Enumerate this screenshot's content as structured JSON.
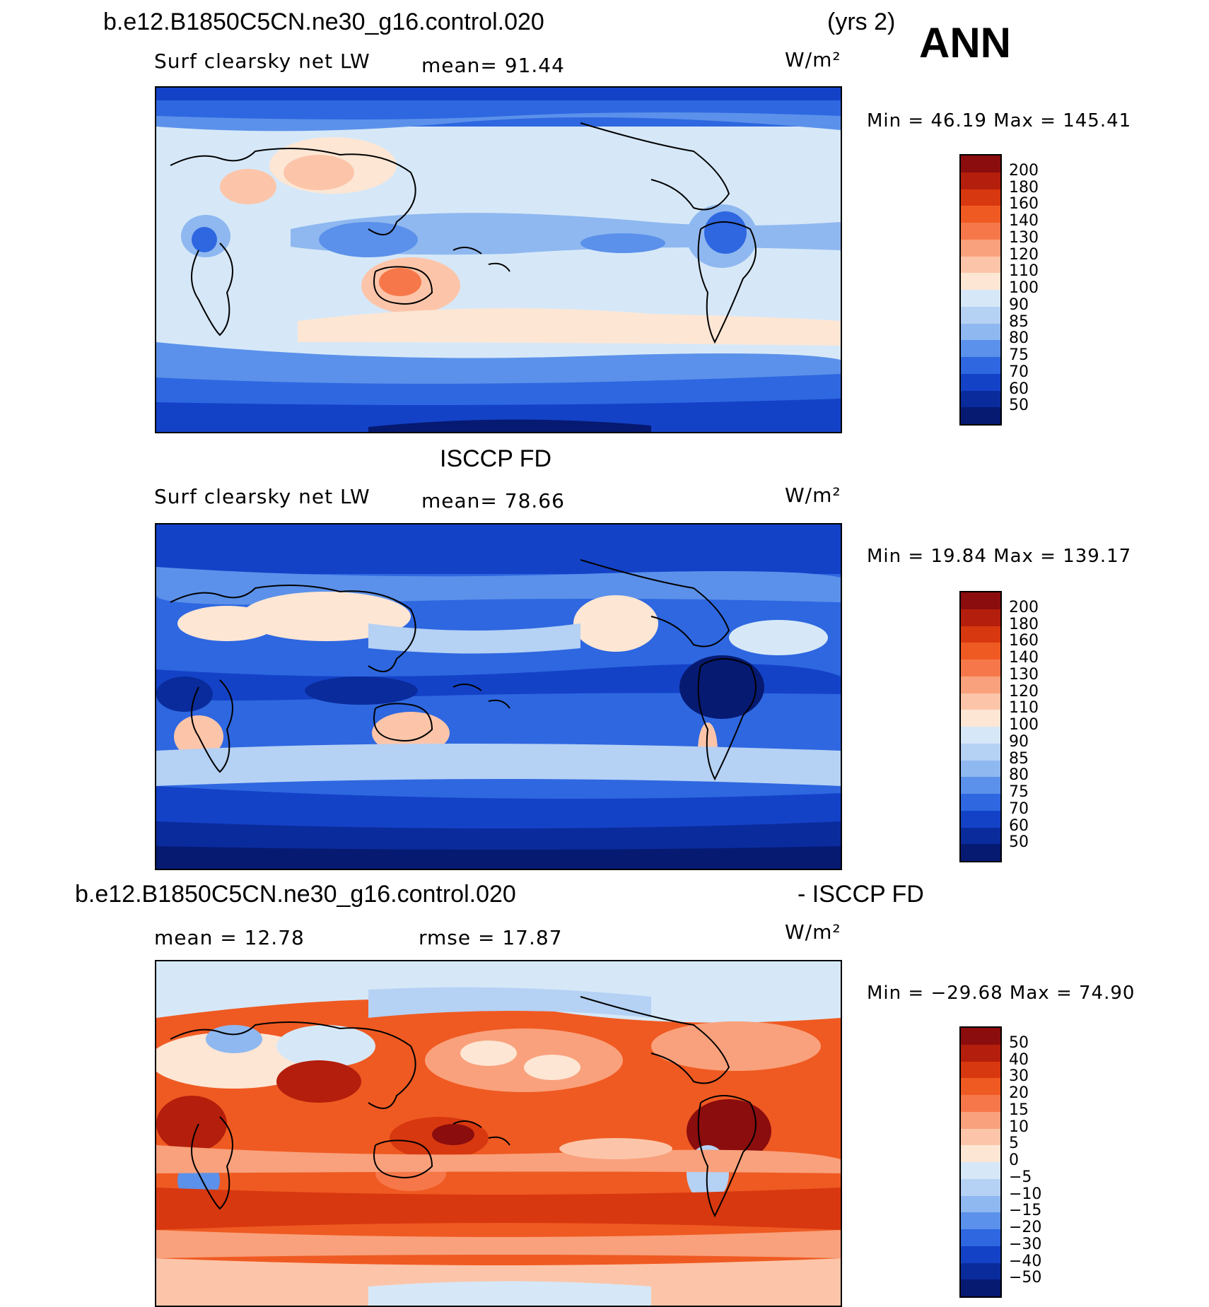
{
  "header": {
    "case_name": "b.e12.B1850C5CN.ne30_g16.control.020",
    "years": "(yrs 2)",
    "season": "ANN"
  },
  "panels": [
    {
      "title": "",
      "variable": "Surf clearsky net LW",
      "stat1": "mean=  91.44",
      "stat2": "",
      "units": "W/m²",
      "minmax": "Min =   46.19  Max  =  145.41",
      "colorbar_labels": [
        "200",
        "180",
        "160",
        "140",
        "130",
        "120",
        "110",
        "100",
        "90",
        "85",
        "80",
        "75",
        "70",
        "60",
        "50"
      ],
      "colorbar_colors": [
        "#8b0d0d",
        "#b41e0c",
        "#d8380f",
        "#ef5a22",
        "#f6784a",
        "#f9a17c",
        "#fcc5a9",
        "#fde6d4",
        "#d6e8f8",
        "#b5d1f4",
        "#8fb8f0",
        "#5b91ea",
        "#2e67e0",
        "#1442c7",
        "#0a2b9c",
        "#061a72"
      ]
    },
    {
      "title": "ISCCP FD",
      "variable": "Surf clearsky net LW",
      "stat1": "mean=  78.66",
      "stat2": "",
      "units": "W/m²",
      "minmax": "Min =   19.84  Max  =  139.17",
      "colorbar_labels": [
        "200",
        "180",
        "160",
        "140",
        "130",
        "120",
        "110",
        "100",
        "90",
        "85",
        "80",
        "75",
        "70",
        "60",
        "50"
      ],
      "colorbar_colors": [
        "#8b0d0d",
        "#b41e0c",
        "#d8380f",
        "#ef5a22",
        "#f6784a",
        "#f9a17c",
        "#fcc5a9",
        "#fde6d4",
        "#d6e8f8",
        "#b5d1f4",
        "#8fb8f0",
        "#5b91ea",
        "#2e67e0",
        "#1442c7",
        "#0a2b9c",
        "#061a72"
      ]
    },
    {
      "title_left": "b.e12.B1850C5CN.ne30_g16.control.020",
      "title_right": "- ISCCP FD",
      "stat1": "mean =   12.78",
      "stat2": "rmse =   17.87",
      "units": "W/m²",
      "minmax": "Min = −29.68  Max  =   74.90",
      "colorbar_labels": [
        "50",
        "40",
        "30",
        "20",
        "15",
        "10",
        "5",
        "0",
        "−5",
        "−10",
        "−15",
        "−20",
        "−30",
        "−40",
        "−50"
      ],
      "colorbar_colors": [
        "#8b0d0d",
        "#b41e0c",
        "#d8380f",
        "#ef5a22",
        "#f6784a",
        "#f9a17c",
        "#fcc5a9",
        "#fde6d4",
        "#d6e8f8",
        "#b5d1f4",
        "#8fb8f0",
        "#5b91ea",
        "#2e67e0",
        "#1442c7",
        "#0a2b9c",
        "#061a72"
      ]
    }
  ]
}
